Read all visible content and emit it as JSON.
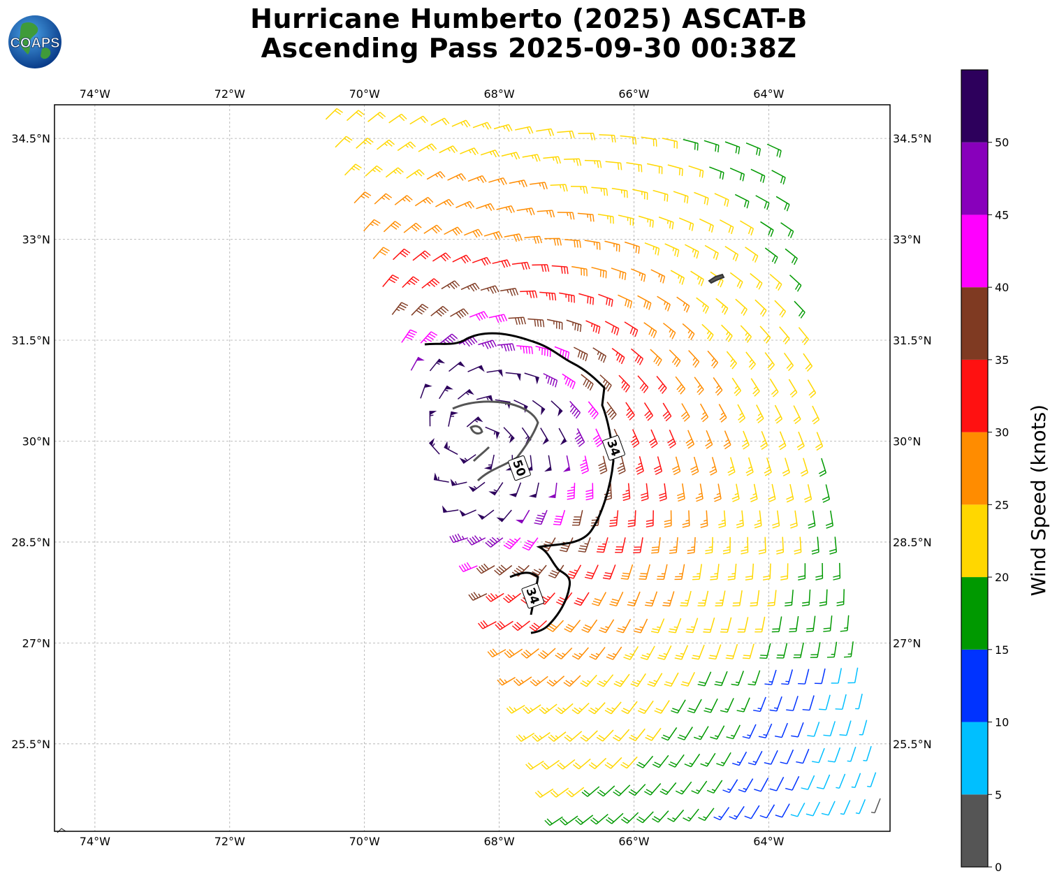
{
  "title": {
    "line1": "Hurricane Humberto (2025) ASCAT-B",
    "line2": "Ascending Pass 2025-09-30 00:38Z"
  },
  "logo": {
    "text": "COAPS"
  },
  "map": {
    "lon_range": [
      -74.6,
      -62.2
    ],
    "lat_range": [
      24.2,
      35.0
    ],
    "lon_ticks": [
      {
        "value": -74,
        "label": "74°W"
      },
      {
        "value": -72,
        "label": "72°W"
      },
      {
        "value": -70,
        "label": "70°W"
      },
      {
        "value": -68,
        "label": "68°W"
      },
      {
        "value": -66,
        "label": "66°W"
      },
      {
        "value": -64,
        "label": "64°W"
      }
    ],
    "lat_ticks": [
      {
        "value": 34.5,
        "label": "34.5°N"
      },
      {
        "value": 33.0,
        "label": "33°N"
      },
      {
        "value": 31.5,
        "label": "31.5°N"
      },
      {
        "value": 30.0,
        "label": "30°N"
      },
      {
        "value": 28.5,
        "label": "28.5°N"
      },
      {
        "value": 27.0,
        "label": "27°N"
      },
      {
        "value": 25.5,
        "label": "25.5°N"
      }
    ],
    "storm_center": {
      "lon": -68.4,
      "lat": 30.0
    },
    "swath": {
      "north_edge": [
        [
          -70.8,
          35.0
        ],
        [
          -63.9,
          34.6
        ]
      ],
      "south_edge": [
        [
          -67.1,
          24.2
        ],
        [
          -62.2,
          24.5
        ]
      ]
    },
    "contour_labels": [
      {
        "label": "34",
        "lon": -66.3,
        "lat": 29.9
      },
      {
        "label": "50",
        "lon": -67.7,
        "lat": 29.6
      },
      {
        "label": "34",
        "lon": -67.5,
        "lat": 27.7
      }
    ]
  },
  "colorbar": {
    "label": "Wind Speed (knots)",
    "ticks": [
      "0",
      "5",
      "10",
      "15",
      "20",
      "25",
      "30",
      "35",
      "40",
      "45",
      "50"
    ],
    "colors": [
      "#555555",
      "#00bfff",
      "#0033ff",
      "#009900",
      "#ffd700",
      "#ff8c00",
      "#ff1111",
      "#7f3a22",
      "#ff00ff",
      "#8800bb",
      "#2d005c"
    ],
    "max": 55
  }
}
